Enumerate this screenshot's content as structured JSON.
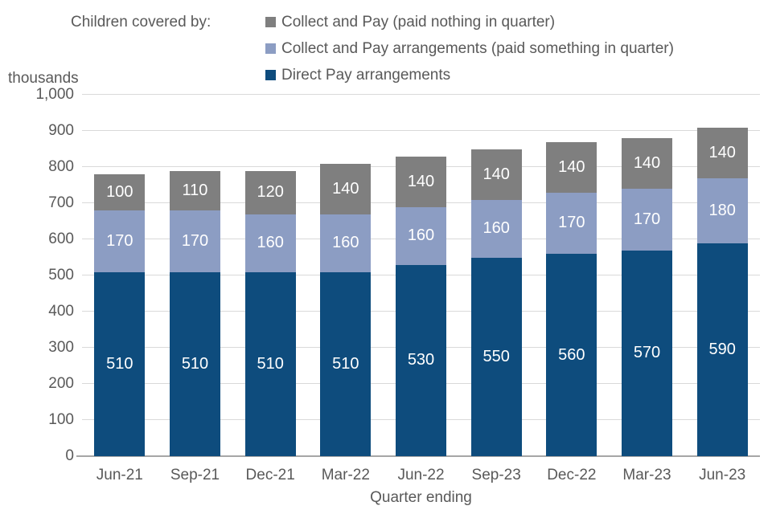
{
  "chart_data": {
    "type": "bar",
    "stacked": true,
    "title": "Children covered by:",
    "unit_label": "thousands",
    "xlabel": "Quarter ending",
    "ylim": [
      0,
      1000
    ],
    "y_tick_step": 100,
    "y_tick_labels": [
      "0",
      "100",
      "200",
      "300",
      "400",
      "500",
      "600",
      "700",
      "800",
      "900",
      "1,000"
    ],
    "grid": true,
    "legend_position": "top",
    "categories": [
      "Jun-21",
      "Sep-21",
      "Dec-21",
      "Mar-22",
      "Jun-22",
      "Sep-23",
      "Dec-22",
      "Mar-23",
      "Jun-23"
    ],
    "series": [
      {
        "name": "Direct Pay arrangements",
        "color": "#0e4c7d",
        "values": [
          510,
          510,
          510,
          510,
          530,
          550,
          560,
          570,
          590
        ]
      },
      {
        "name": "Collect and Pay arrangements (paid something in quarter)",
        "color": "#8c9dc3",
        "values": [
          170,
          170,
          160,
          160,
          160,
          160,
          170,
          170,
          180
        ]
      },
      {
        "name": "Collect and Pay (paid nothing in quarter)",
        "color": "#7f7f7f",
        "values": [
          100,
          110,
          120,
          140,
          140,
          140,
          140,
          140,
          140
        ]
      }
    ],
    "totals": [
      780,
      790,
      790,
      810,
      830,
      850,
      870,
      880,
      910
    ]
  },
  "colors": {
    "grid": "#d9d9d9",
    "axis_line": "#a6a6a6",
    "text": "#595959",
    "bar_label_text": "#ffffff",
    "background": "#ffffff"
  }
}
